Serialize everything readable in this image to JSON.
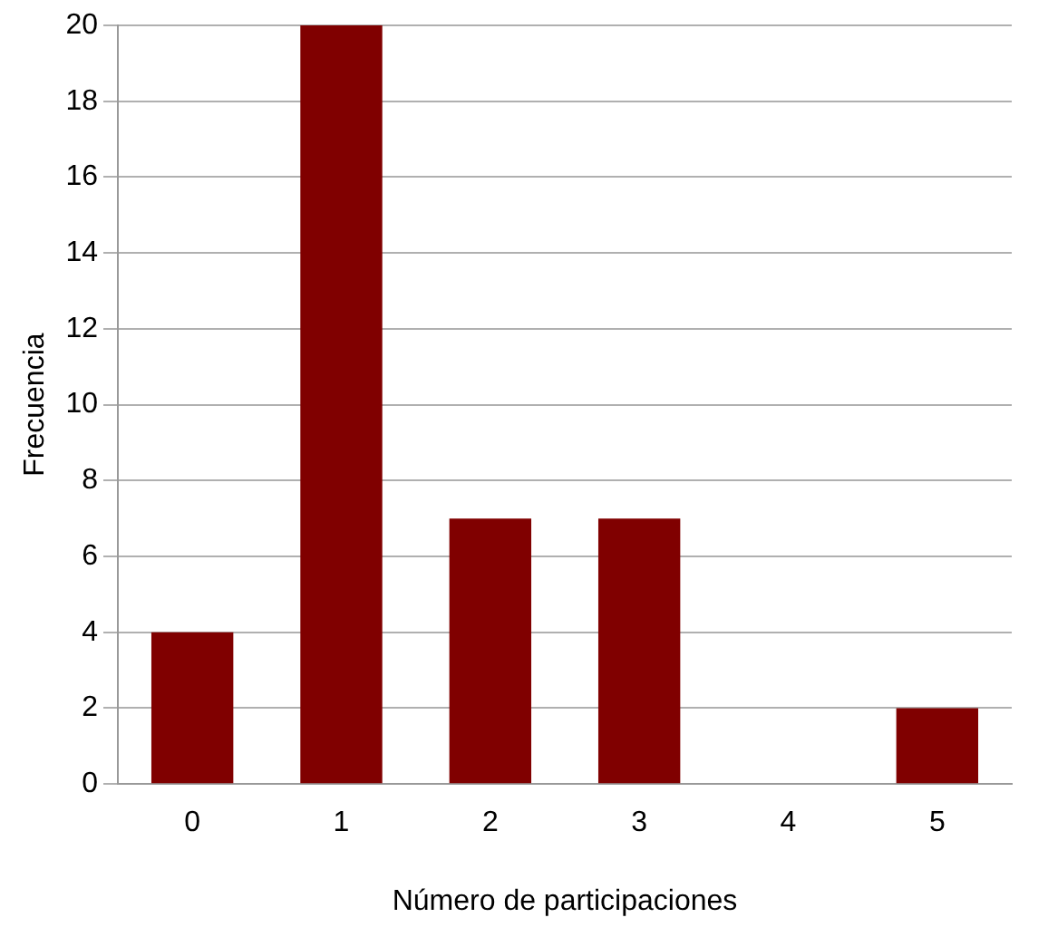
{
  "chart_data": {
    "type": "bar",
    "xlabel": "Número de participaciones",
    "ylabel": "Frecuencia",
    "categories": [
      "0",
      "1",
      "2",
      "3",
      "4",
      "5"
    ],
    "values": [
      4,
      20,
      7,
      7,
      0,
      2
    ],
    "color": "#800000",
    "ylim": [
      0,
      20
    ],
    "yticks": [
      0,
      2,
      4,
      6,
      8,
      10,
      12,
      14,
      16,
      18,
      20
    ],
    "grid": "y",
    "legend": false
  }
}
